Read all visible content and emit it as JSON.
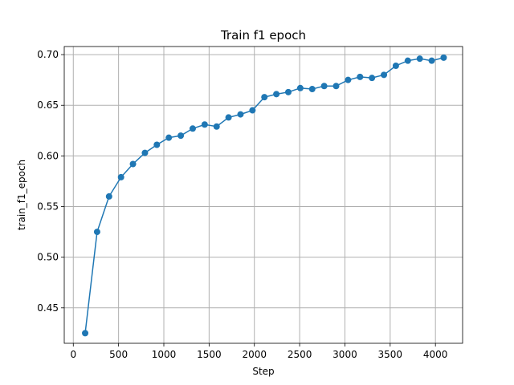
{
  "chart_data": {
    "type": "line",
    "title": "Train f1 epoch",
    "xlabel": "Step",
    "ylabel": "train_f1_epoch",
    "xlim": [
      -100,
      4300
    ],
    "ylim": [
      0.415,
      0.708
    ],
    "xticks": [
      0,
      500,
      1000,
      1500,
      2000,
      2500,
      3000,
      3500,
      4000
    ],
    "xtick_labels": [
      "0",
      "500",
      "1000",
      "1500",
      "2000",
      "2500",
      "3000",
      "3500",
      "4000"
    ],
    "yticks": [
      0.45,
      0.5,
      0.55,
      0.6,
      0.65,
      0.7
    ],
    "ytick_labels": [
      "0.45",
      "0.50",
      "0.55",
      "0.60",
      "0.65",
      "0.70"
    ],
    "grid": true,
    "marker": "circle",
    "color": "#1f77b4",
    "series": [
      {
        "x": [
          131,
          263,
          395,
          527,
          659,
          791,
          923,
          1055,
          1187,
          1319,
          1451,
          1583,
          1715,
          1847,
          1979,
          2111,
          2243,
          2375,
          2507,
          2639,
          2771,
          2903,
          3035,
          3167,
          3299,
          3431,
          3563,
          3695,
          3827,
          3959,
          4091
        ],
        "y": [
          0.425,
          0.525,
          0.56,
          0.579,
          0.592,
          0.603,
          0.611,
          0.618,
          0.62,
          0.627,
          0.631,
          0.629,
          0.638,
          0.641,
          0.645,
          0.658,
          0.661,
          0.663,
          0.667,
          0.666,
          0.669,
          0.669,
          0.675,
          0.678,
          0.677,
          0.68,
          0.689,
          0.694,
          0.696,
          0.694,
          0.697
        ]
      }
    ]
  }
}
